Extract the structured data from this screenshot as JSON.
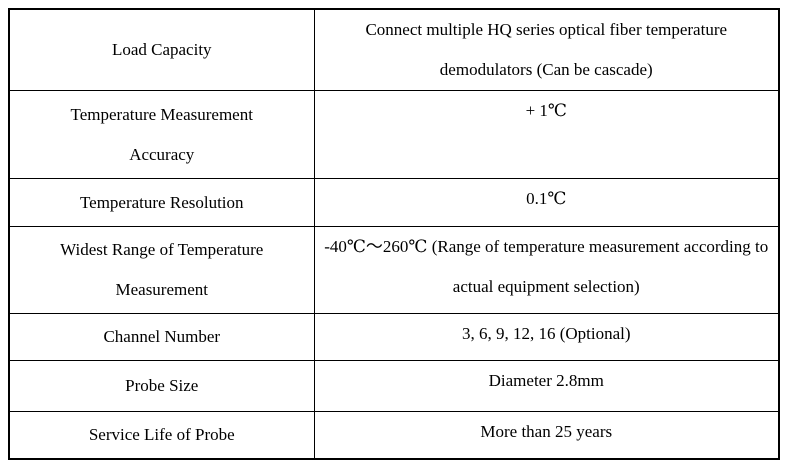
{
  "table": {
    "title": "optical-fiber-temperature-product-specifications",
    "rows": [
      {
        "label": "Load Capacity",
        "value": "Connect multiple HQ series optical fiber temperature demodulators (Can be cascade)"
      },
      {
        "label": "Temperature Measurement Accuracy",
        "value": "+ 1℃"
      },
      {
        "label": "Temperature Resolution",
        "value": "0.1℃"
      },
      {
        "label": "Widest Range of Temperature Measurement",
        "value": "-40℃～260℃ (Range of temperature measurement according to actual equipment selection)"
      },
      {
        "label": "Channel Number",
        "value": "3, 6, 9, 12, 16 (Optional)"
      },
      {
        "label": "Probe Size",
        "value": "Diameter 2.8mm"
      },
      {
        "label": "Service Life of Probe",
        "value": "More than 25 years"
      }
    ],
    "colors": {
      "border": "#000000",
      "text": "#000000",
      "background": "#ffffff"
    }
  }
}
